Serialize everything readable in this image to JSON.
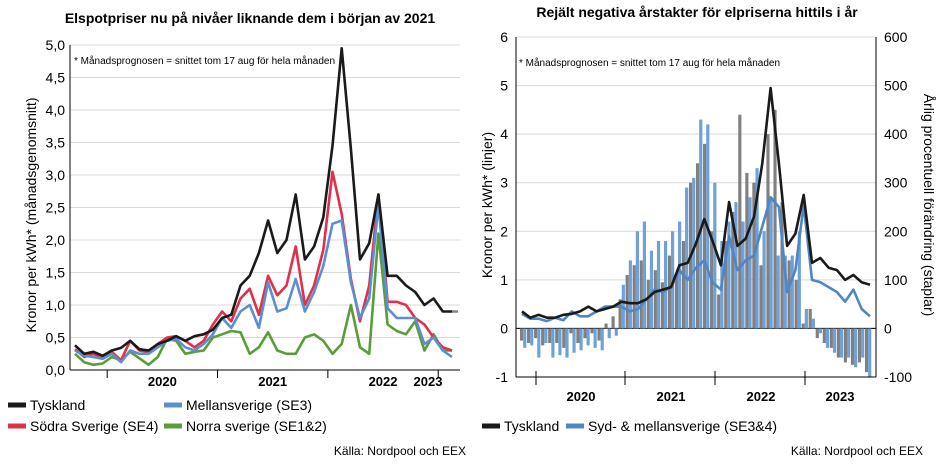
{
  "chart_data": [
    {
      "type": "line",
      "title": "Elspotpriser nu på nivåer liknande dem i början av 2021",
      "ylabel": "Kronor per kWh* (månadsgenomsnitt)",
      "ylim": [
        0,
        5
      ],
      "yticks": [
        "0,0",
        "0,5",
        "1,0",
        "1,5",
        "2,0",
        "2,5",
        "3,0",
        "3,5",
        "4,0",
        "4,5",
        "5,0"
      ],
      "year_labels": [
        "2020",
        "2021",
        "2022",
        "2023"
      ],
      "note": "* Månadsprognosen = snittet tom 17 aug för hela månaden",
      "source": "Källa: Nordpool och EEX",
      "x": [
        "2019-09",
        "2019-10",
        "2019-11",
        "2019-12",
        "2020-01",
        "2020-02",
        "2020-03",
        "2020-04",
        "2020-05",
        "2020-06",
        "2020-07",
        "2020-08",
        "2020-09",
        "2020-10",
        "2020-11",
        "2020-12",
        "2021-01",
        "2021-02",
        "2021-03",
        "2021-04",
        "2021-05",
        "2021-06",
        "2021-07",
        "2021-08",
        "2021-09",
        "2021-10",
        "2021-11",
        "2021-12",
        "2022-01",
        "2022-02",
        "2022-03",
        "2022-04",
        "2022-05",
        "2022-06",
        "2022-07",
        "2022-08",
        "2022-09",
        "2022-10",
        "2022-11",
        "2022-12",
        "2023-01",
        "2023-02",
        "2023-03",
        "2023-04",
        "2023-05",
        "2023-06",
        "2023-07",
        "2023-08"
      ],
      "series": [
        {
          "name": "Tyskland",
          "color": "#1a1a1a",
          "values": [
            0.38,
            0.25,
            0.28,
            0.22,
            0.3,
            0.34,
            0.45,
            0.32,
            0.3,
            0.4,
            0.45,
            0.52,
            0.45,
            0.52,
            0.55,
            0.62,
            0.8,
            0.85,
            1.3,
            1.45,
            1.8,
            2.3,
            1.8,
            2.0,
            2.7,
            1.7,
            1.9,
            2.35,
            3.45,
            4.95,
            3.4,
            1.7,
            1.95,
            2.7,
            1.45,
            1.45,
            1.3,
            1.2,
            1.0,
            1.1,
            0.9,
            0.9,
            null,
            null,
            null,
            null,
            null,
            null
          ]
        },
        {
          "name": "Mellansverige (SE3)",
          "color": "#5b8fd0",
          "values": [
            0.3,
            0.22,
            0.2,
            0.17,
            0.25,
            0.12,
            0.3,
            0.25,
            0.25,
            0.35,
            0.45,
            0.48,
            0.35,
            0.3,
            0.4,
            0.55,
            0.8,
            0.65,
            0.9,
            1.0,
            0.65,
            1.35,
            0.9,
            0.95,
            1.4,
            0.9,
            1.2,
            1.6,
            2.25,
            2.3,
            1.35,
            0.8,
            1.1,
            2.55,
            0.95,
            0.8,
            0.8,
            0.8,
            0.4,
            0.5,
            0.3,
            0.2,
            null,
            null,
            null,
            null,
            null,
            null
          ]
        },
        {
          "name": "Södra Sverige (SE4)",
          "color": "#e0304a",
          "values": [
            0.32,
            0.2,
            0.25,
            0.18,
            0.28,
            0.15,
            0.45,
            0.3,
            0.28,
            0.4,
            0.5,
            0.52,
            0.45,
            0.35,
            0.45,
            0.7,
            0.9,
            0.75,
            1.1,
            1.25,
            0.85,
            1.45,
            1.15,
            1.3,
            1.9,
            1.0,
            1.3,
            1.85,
            3.05,
            2.4,
            1.4,
            0.75,
            1.3,
            2.7,
            1.05,
            1.05,
            1.0,
            0.8,
            0.7,
            0.5,
            0.35,
            0.3,
            null,
            null,
            null,
            null,
            null,
            null
          ]
        },
        {
          "name": "Norra sverige (SE1&2)",
          "color": "#5a9c3a",
          "values": [
            0.25,
            0.12,
            0.08,
            0.1,
            0.2,
            0.15,
            0.28,
            0.18,
            0.08,
            0.2,
            0.48,
            0.45,
            0.25,
            0.28,
            0.3,
            0.5,
            0.55,
            0.6,
            0.58,
            0.25,
            0.35,
            0.58,
            0.3,
            0.25,
            0.25,
            0.5,
            0.55,
            0.45,
            0.25,
            0.4,
            1.0,
            0.35,
            0.25,
            2.1,
            0.7,
            0.6,
            0.55,
            0.75,
            0.3,
            0.55,
            0.3,
            0.3,
            null,
            null,
            null,
            null,
            null,
            null
          ]
        }
      ]
    },
    {
      "type": "bar+line",
      "title": "Rejält negativa årstakter för elpriserna hittils i år",
      "ylabel": "Kronor per kWh* (linjer)",
      "y2label": "Årlig procentuell förändring (staplar)",
      "ylim": [
        -1,
        6
      ],
      "y2lim": [
        -100,
        600
      ],
      "yticks": [
        "-1",
        "0",
        "1",
        "2",
        "3",
        "4",
        "5",
        "6"
      ],
      "y2ticks": [
        "-100",
        "0",
        "100",
        "200",
        "300",
        "400",
        "500",
        "600"
      ],
      "year_labels": [
        "2020",
        "2021",
        "2022",
        "2023"
      ],
      "note": "* Månadsprognosen = snittet tom 17 aug för hela månaden",
      "source": "Källa: Nordpool och EEX",
      "legend": [
        "Tyskland",
        "Syd- & mellansverige (SE3&4)"
      ],
      "bars": {
        "tyskland_color": "#808080",
        "sverige_color": "#6fa0d8",
        "tyskland_pct": [
          -25,
          -30,
          -20,
          -35,
          -30,
          -30,
          -40,
          -10,
          -30,
          -20,
          -10,
          -25,
          10,
          25,
          60,
          110,
          130,
          140,
          100,
          120,
          95,
          150,
          110,
          180,
          300,
          340,
          380,
          200,
          70,
          180,
          240,
          440,
          320,
          300,
          130,
          400,
          450,
          260,
          140,
          100,
          10,
          40,
          -20,
          -30,
          -40,
          -60,
          -70,
          -75,
          -70,
          -90
        ],
        "sverige_pct": [
          -40,
          -35,
          -60,
          -30,
          -60,
          -55,
          -60,
          -50,
          -45,
          -35,
          -40,
          -45,
          -20,
          -15,
          90,
          140,
          200,
          220,
          160,
          180,
          180,
          200,
          220,
          290,
          310,
          430,
          420,
          300,
          180,
          220,
          260,
          220,
          270,
          330,
          200,
          270,
          150,
          150,
          150,
          200,
          40,
          20,
          -10,
          -40,
          -50,
          -60,
          -60,
          -80,
          -60,
          -100
        ]
      },
      "lines": [
        {
          "name": "Tyskland",
          "color": "#1a1a1a",
          "values": [
            0.35,
            0.22,
            0.28,
            0.22,
            0.22,
            0.28,
            0.3,
            0.35,
            0.45,
            0.35,
            0.4,
            0.45,
            0.55,
            0.52,
            0.52,
            0.6,
            0.75,
            0.8,
            0.85,
            1.3,
            1.35,
            1.75,
            2.25,
            1.8,
            1.3,
            2.6,
            1.7,
            1.85,
            2.3,
            3.4,
            4.95,
            3.4,
            1.7,
            1.95,
            2.75,
            1.35,
            1.45,
            1.25,
            1.2,
            1.0,
            1.1,
            0.95,
            0.9
          ]
        },
        {
          "name": "Syd- & mellansverige (SE3&4)",
          "color": "#4f86c6",
          "values": [
            0.3,
            0.2,
            0.2,
            0.15,
            0.22,
            0.17,
            0.35,
            0.25,
            0.25,
            0.35,
            0.45,
            0.45,
            0.45,
            0.35,
            0.4,
            0.6,
            0.8,
            0.75,
            0.85,
            1.2,
            1.0,
            1.25,
            1.4,
            0.95,
            0.8,
            1.9,
            1.2,
            1.4,
            1.5,
            2.1,
            2.7,
            2.5,
            0.75,
            1.2,
            2.55,
            1.0,
            0.95,
            0.85,
            0.75,
            0.55,
            0.8,
            0.4,
            0.25
          ]
        }
      ]
    }
  ]
}
